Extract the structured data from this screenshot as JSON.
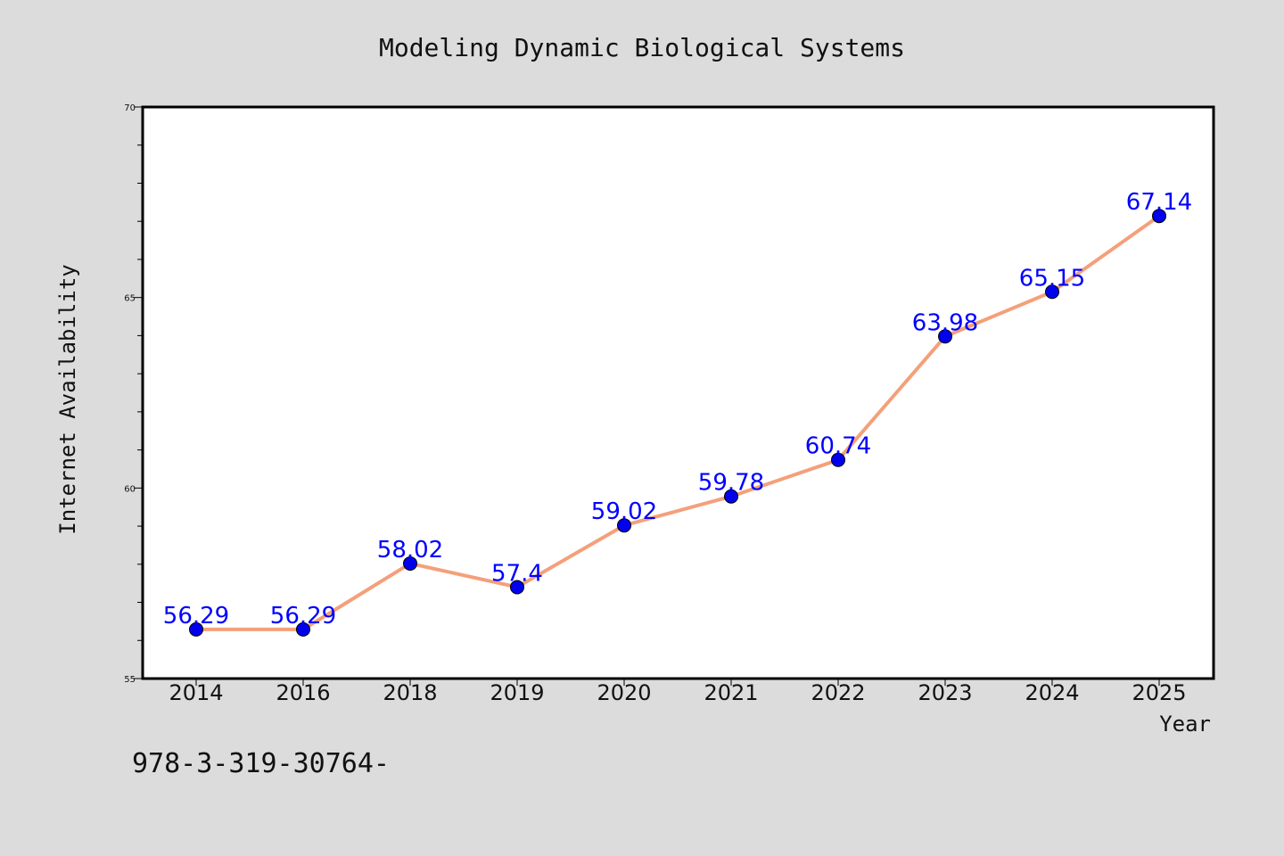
{
  "chart_data": {
    "type": "line",
    "title": "Modeling Dynamic Biological Systems",
    "xlabel": "Year",
    "ylabel": "Internet Availability",
    "categories": [
      "2014",
      "2016",
      "2018",
      "2019",
      "2020",
      "2021",
      "2022",
      "2023",
      "2024",
      "2025"
    ],
    "series": [
      {
        "values": [
          56.29,
          56.29,
          58.02,
          57.4,
          59.02,
          59.78,
          60.74,
          63.98,
          65.15,
          67.14
        ],
        "labels": [
          "56.29",
          "56.29",
          "58.02",
          "57.4",
          "59.02",
          "59.78",
          "60.74",
          "63.98",
          "65.15",
          "67.14"
        ],
        "line_color": "#f4a07a",
        "marker_color": "#0000ee",
        "label_color": "#0000ff"
      }
    ],
    "ylim": [
      55,
      70
    ],
    "yticks": [
      "55",
      "60",
      "65",
      "70"
    ],
    "grid": false,
    "legend": false,
    "background": "#dcdcdc",
    "plot_background": "#ffffff"
  },
  "footer_text": "978-3-319-30764-"
}
